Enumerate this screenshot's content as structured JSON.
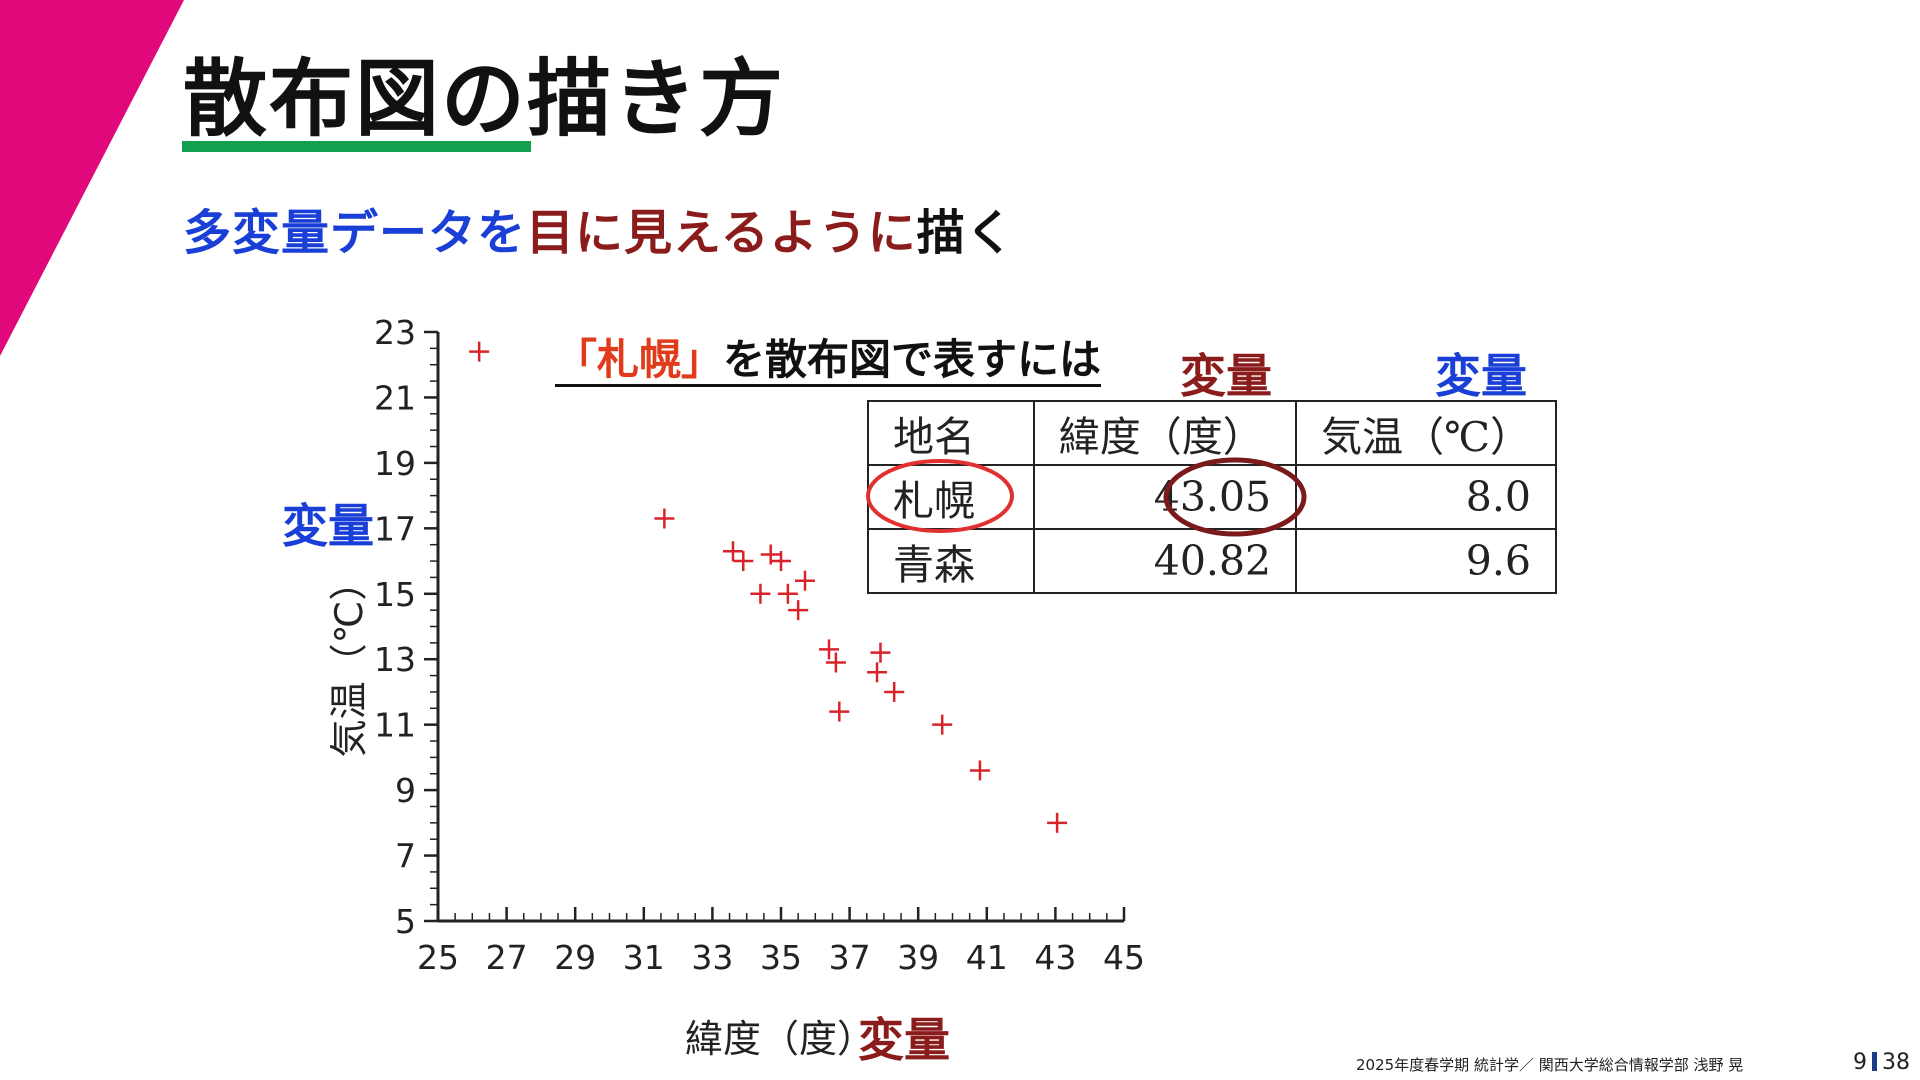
{
  "slide": {
    "title": "散布図の描き方",
    "subtitle": {
      "part1": "多変量データを",
      "part2": "目に見えるように",
      "part3": "描く"
    },
    "footer": "2025年度春学期  統計学／  関西大学総合情報学部  浅野  晃",
    "page_current": "9",
    "page_total": "38"
  },
  "annotation": {
    "title_quote": "「札幌」",
    "title_rest": "を散布図で表すには",
    "var_label_table_lat": "変量",
    "var_label_table_temp": "変量",
    "var_label_y": "変量",
    "var_label_x": "変量"
  },
  "table": {
    "headers": [
      "地名",
      "緯度（度）",
      "気温（℃）"
    ],
    "rows": [
      [
        "札幌",
        "43.05",
        "8.0"
      ],
      [
        "青森",
        "40.82",
        "9.6"
      ]
    ]
  },
  "colors": {
    "accent_red": "#8b1c1c",
    "accent_blue": "#1a3fd6",
    "marker": "#d8232a",
    "title_rule": "#10a050",
    "corner": "#e0087a"
  },
  "chart_data": {
    "type": "scatter",
    "xlabel": "緯度（度）",
    "ylabel": "気温（℃）",
    "xlim": [
      25,
      45
    ],
    "ylim": [
      5,
      23
    ],
    "x_ticks": [
      25,
      27,
      29,
      31,
      33,
      35,
      37,
      39,
      41,
      43,
      45
    ],
    "y_ticks": [
      5,
      7,
      9,
      11,
      13,
      15,
      17,
      19,
      21,
      23
    ],
    "marker": "+",
    "points": [
      {
        "x": 26.2,
        "y": 22.4
      },
      {
        "x": 31.6,
        "y": 17.3
      },
      {
        "x": 33.6,
        "y": 16.3
      },
      {
        "x": 33.9,
        "y": 16.0
      },
      {
        "x": 34.7,
        "y": 16.2
      },
      {
        "x": 35.0,
        "y": 16.0
      },
      {
        "x": 35.7,
        "y": 15.4
      },
      {
        "x": 34.4,
        "y": 15.0
      },
      {
        "x": 35.2,
        "y": 15.0
      },
      {
        "x": 35.5,
        "y": 14.5
      },
      {
        "x": 36.4,
        "y": 13.3
      },
      {
        "x": 36.6,
        "y": 12.9
      },
      {
        "x": 37.9,
        "y": 13.2
      },
      {
        "x": 37.8,
        "y": 12.6
      },
      {
        "x": 38.3,
        "y": 12.0
      },
      {
        "x": 36.7,
        "y": 11.4
      },
      {
        "x": 39.7,
        "y": 11.0
      },
      {
        "x": 40.8,
        "y": 9.6
      },
      {
        "x": 43.05,
        "y": 8.0
      }
    ]
  }
}
